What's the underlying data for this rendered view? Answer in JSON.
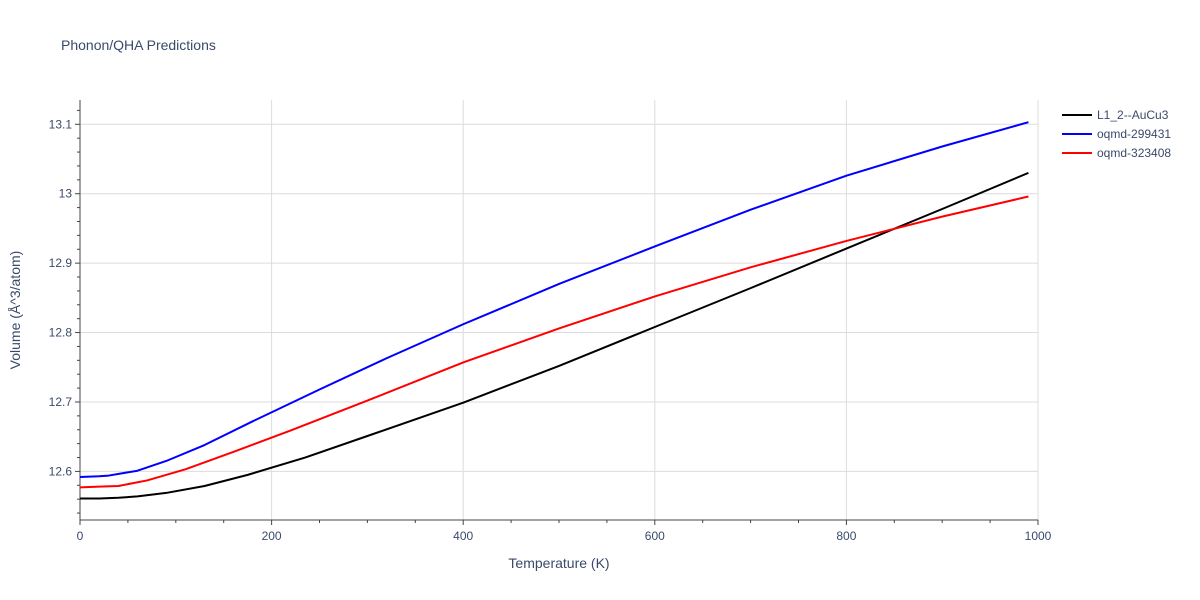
{
  "chart_data": {
    "type": "line",
    "title": "Phonon/QHA Predictions",
    "xlabel": "Temperature (K)",
    "ylabel": "Volume (Å^3/atom)",
    "xlim": [
      0,
      1000
    ],
    "ylim": [
      12.53,
      13.135
    ],
    "x_ticks": [
      0,
      200,
      400,
      600,
      800,
      1000
    ],
    "y_ticks": [
      12.6,
      12.7,
      12.8,
      12.9,
      13,
      13.1
    ],
    "x_tick_labels": [
      "0",
      "200",
      "400",
      "600",
      "800",
      "1000"
    ],
    "y_tick_labels": [
      "12.6",
      "12.7",
      "12.8",
      "12.9",
      "13",
      "13.1"
    ],
    "grid": true,
    "legend_position": "top-right-outside",
    "series": [
      {
        "name": "L1_2--AuCu3",
        "color": "#000000",
        "x": [
          0,
          20,
          40,
          60,
          90,
          130,
          175,
          235,
          300,
          400,
          500,
          600,
          700,
          800,
          900,
          990
        ],
        "y": [
          12.561,
          12.561,
          12.562,
          12.564,
          12.569,
          12.579,
          12.595,
          12.62,
          12.651,
          12.699,
          12.752,
          12.808,
          12.864,
          12.921,
          12.978,
          13.03
        ]
      },
      {
        "name": "oqmd-299431",
        "color": "#0000ff",
        "x": [
          0,
          20,
          30,
          60,
          90,
          130,
          180,
          250,
          320,
          400,
          500,
          600,
          700,
          800,
          900,
          990
        ],
        "y": [
          12.592,
          12.593,
          12.594,
          12.601,
          12.615,
          12.638,
          12.672,
          12.718,
          12.763,
          12.812,
          12.87,
          12.924,
          12.977,
          13.026,
          13.068,
          13.103
        ]
      },
      {
        "name": "oqmd-323408",
        "color": "#ff0000",
        "x": [
          0,
          20,
          40,
          70,
          110,
          160,
          220,
          300,
          400,
          500,
          600,
          700,
          800,
          900,
          990
        ],
        "y": [
          12.577,
          12.578,
          12.579,
          12.587,
          12.603,
          12.628,
          12.659,
          12.702,
          12.757,
          12.806,
          12.852,
          12.894,
          12.932,
          12.967,
          12.996
        ]
      }
    ]
  }
}
